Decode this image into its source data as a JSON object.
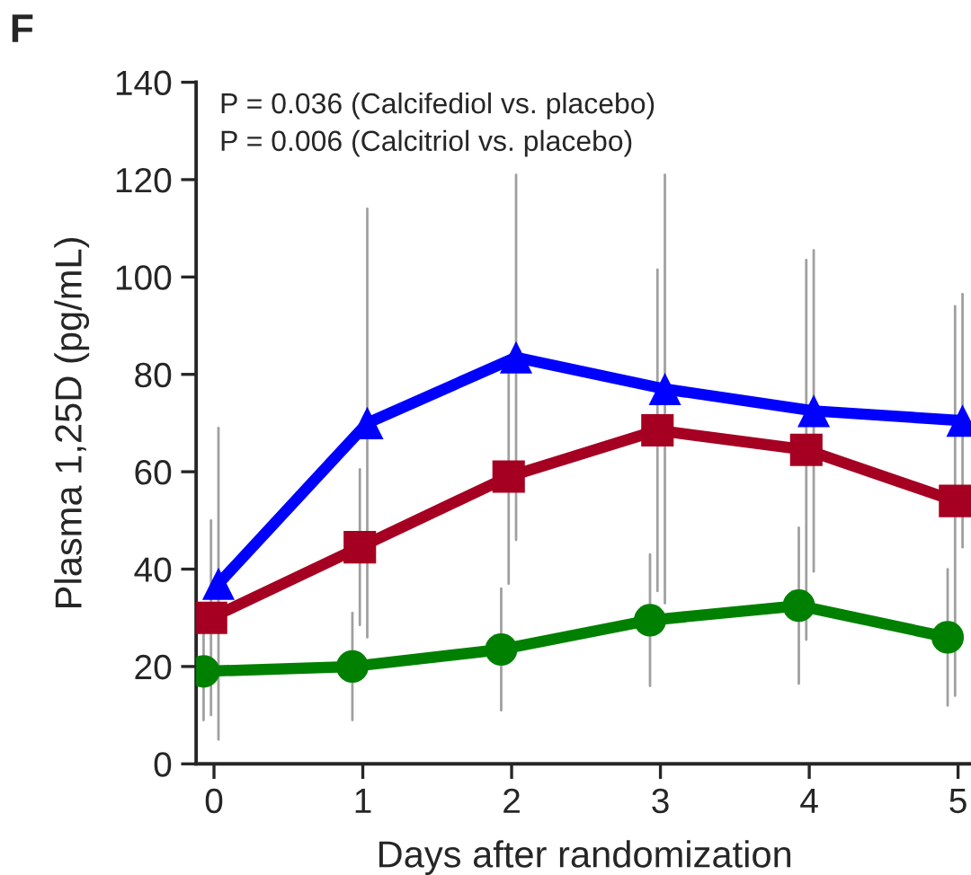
{
  "chart_data": {
    "type": "line",
    "ylabel": "Plasma 1,25D (pg/mL)",
    "xlabel": "Days after randomization",
    "annotations": [
      "F",
      "P = 0.036 (Calcifediol vs. placebo)",
      "P = 0.006 (Calcitriol vs. placebo)"
    ],
    "xlim": [
      -0.12,
      5.1
    ],
    "xticks": [
      0,
      1,
      2,
      3,
      4,
      5
    ],
    "ylim": [
      0,
      140
    ],
    "yticks": [
      0,
      20,
      40,
      60,
      80,
      100,
      120,
      140
    ],
    "grid": false,
    "legend": false,
    "series": [
      {
        "color": "#008000",
        "marker": "circle",
        "x": [
          -0.07,
          0.93,
          1.93,
          2.93,
          3.93,
          4.93
        ],
        "values": [
          19,
          20,
          23.5,
          29.5,
          32.5,
          26
        ],
        "errors": [
          10,
          11,
          12.5,
          13.5,
          16,
          14
        ]
      },
      {
        "color": "#a50021",
        "marker": "square",
        "x": [
          -0.02,
          0.98,
          1.98,
          2.98,
          3.98,
          4.98
        ],
        "values": [
          30,
          44.5,
          59,
          68.5,
          64.5,
          54
        ],
        "errors": [
          20,
          16,
          22,
          33,
          39,
          40
        ]
      },
      {
        "color": "#0000ff",
        "marker": "triangle",
        "x": [
          0.03,
          1.03,
          2.03,
          3.03,
          4.03,
          5.03
        ],
        "values": [
          37,
          70,
          83.5,
          77,
          72.5,
          70.5
        ],
        "errors": [
          32,
          44,
          37.5,
          44,
          33,
          26
        ]
      }
    ]
  }
}
